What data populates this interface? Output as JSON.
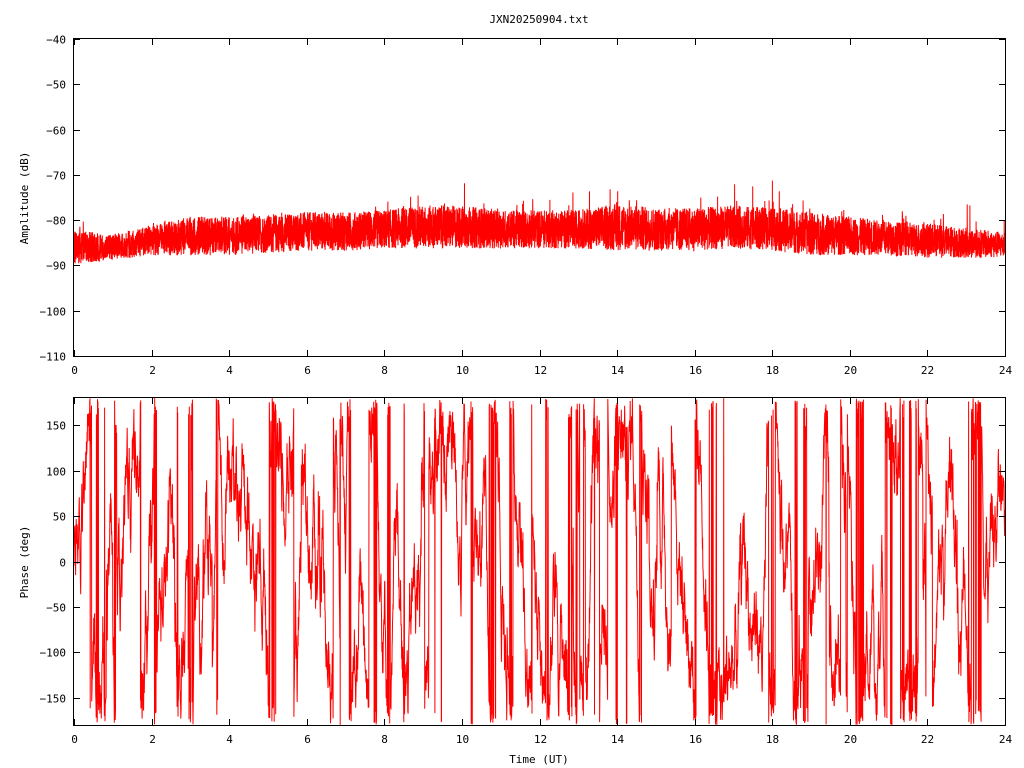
{
  "chart_data": [
    {
      "type": "line",
      "title": "JXN20250904.txt",
      "xlabel": "",
      "ylabel": "Amplitude (dB)",
      "xlim": [
        0,
        24
      ],
      "ylim": [
        -110,
        -40
      ],
      "xticks": [
        "0",
        "2",
        "4",
        "6",
        "8",
        "10",
        "12",
        "14",
        "16",
        "18",
        "20",
        "22",
        "24"
      ],
      "yticks": [
        "-40",
        "-50",
        "-60",
        "-70",
        "-80",
        "-90",
        "-100",
        "-110"
      ],
      "grid": false,
      "legend": "none",
      "series": [
        {
          "color": "#ff0000",
          "x": [
            0,
            1,
            2,
            3,
            4,
            5,
            6,
            7,
            8,
            9,
            10,
            11,
            12,
            13,
            14,
            15,
            16,
            17,
            18,
            19,
            20,
            21,
            22,
            23,
            24
          ],
          "y_mean": [
            -86,
            -86,
            -84.5,
            -83.5,
            -83.5,
            -83,
            -82.5,
            -82.5,
            -82,
            -81.5,
            -81.5,
            -82,
            -82,
            -82,
            -81.5,
            -82,
            -82,
            -81.5,
            -82,
            -83,
            -83.5,
            -84,
            -84.5,
            -85,
            -85.5
          ],
          "y_min": [
            -90,
            -89,
            -88,
            -88,
            -88,
            -87.5,
            -87,
            -87,
            -86.5,
            -86.5,
            -86.5,
            -86.5,
            -86.5,
            -86.5,
            -87,
            -87,
            -87,
            -86.5,
            -87,
            -88,
            -88,
            -88,
            -88.5,
            -88.5,
            -88.5
          ],
          "y_max": [
            -79,
            -83,
            -80.5,
            -79,
            -79,
            -78,
            -78,
            -77.5,
            -76,
            -72,
            -71,
            -76,
            -75,
            -73,
            -71,
            -75,
            -73,
            -72,
            -71,
            -75,
            -78,
            -78,
            -78,
            -76,
            -77
          ]
        }
      ]
    },
    {
      "type": "line",
      "title": "",
      "xlabel": "Time (UT)",
      "ylabel": "Phase (deg)",
      "xlim": [
        0,
        24
      ],
      "ylim": [
        -180,
        180
      ],
      "xticks": [
        "0",
        "2",
        "4",
        "6",
        "8",
        "10",
        "12",
        "14",
        "16",
        "18",
        "20",
        "22",
        "24"
      ],
      "yticks": [
        "150",
        "100",
        "50",
        "0",
        "-50",
        "-100",
        "-150"
      ],
      "grid": false,
      "legend": "none",
      "series": [
        {
          "color": "#ff0000",
          "y_range": [
            -180,
            180
          ],
          "x_range": [
            0,
            24
          ]
        }
      ]
    }
  ]
}
